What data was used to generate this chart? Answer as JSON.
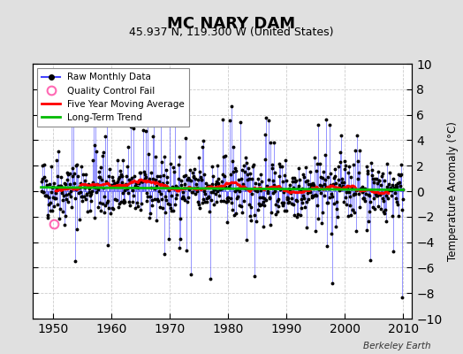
{
  "title": "MC NARY DAM",
  "subtitle": "45.937 N, 119.300 W (United States)",
  "ylabel": "Temperature Anomaly (°C)",
  "watermark": "Berkeley Earth",
  "xlim": [
    1946.5,
    2011.5
  ],
  "ylim": [
    -10,
    10
  ],
  "xticks": [
    1950,
    1960,
    1970,
    1980,
    1990,
    2000,
    2010
  ],
  "yticks": [
    -10,
    -8,
    -6,
    -4,
    -2,
    0,
    2,
    4,
    6,
    8,
    10
  ],
  "fig_bg_color": "#e0e0e0",
  "plot_bg_color": "#ffffff",
  "raw_line_color": "#4444ff",
  "raw_dot_color": "#000000",
  "qc_fail_color": "#ff69b4",
  "moving_avg_color": "#ff0000",
  "trend_color": "#00bb00",
  "grid_color": "#cccccc",
  "start_year": 1948,
  "end_year": 2010,
  "seed": 42,
  "qc_x": 1950.25,
  "qc_y": -2.6
}
